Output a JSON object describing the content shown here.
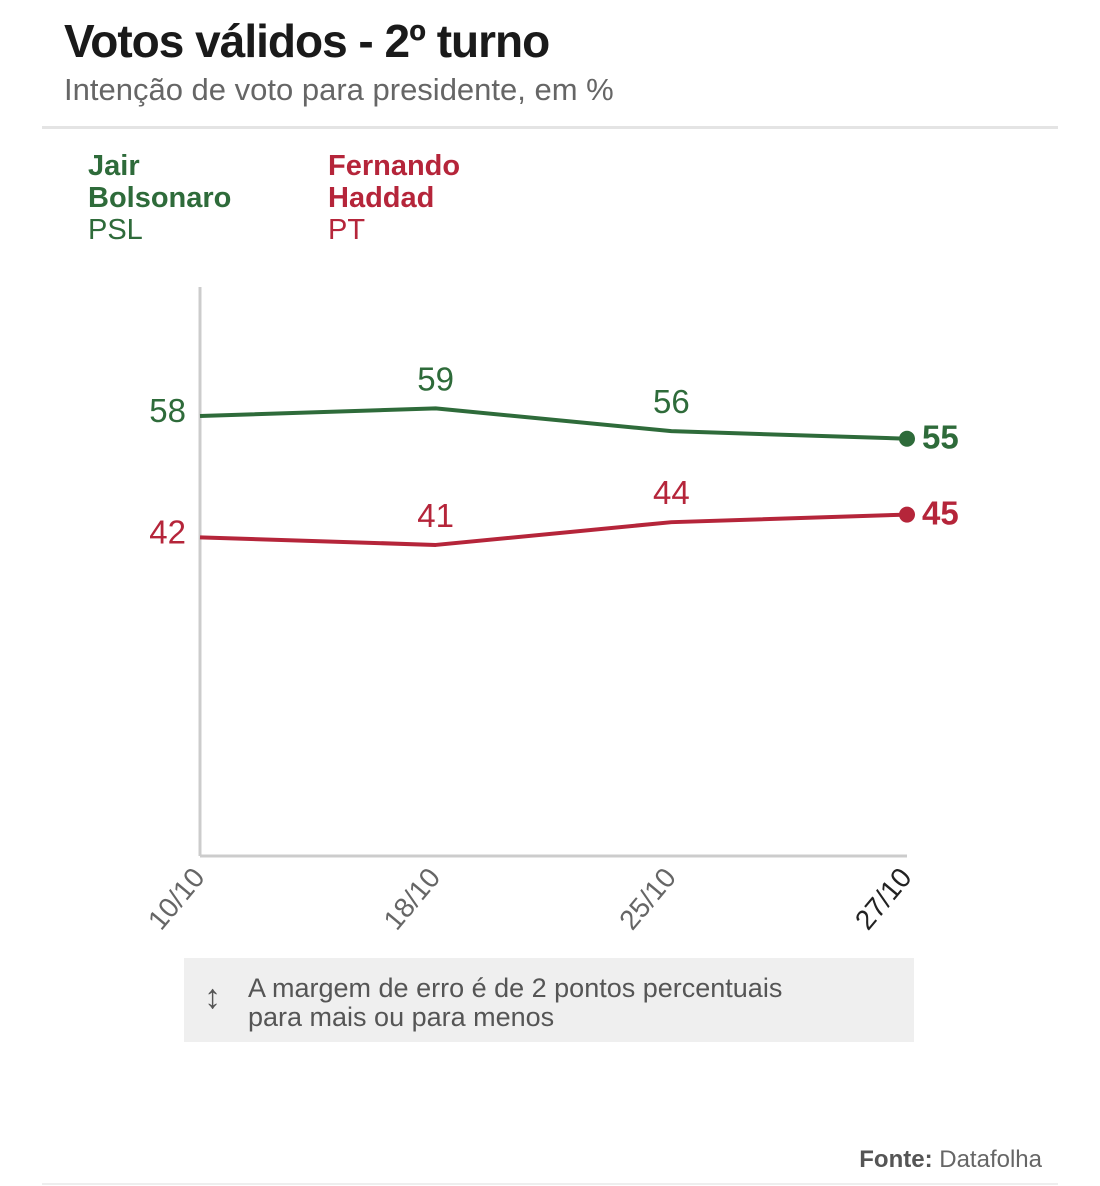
{
  "header": {
    "title": "Votos válidos - 2º turno",
    "subtitle": "Intenção de voto para presidente, em %"
  },
  "legend": [
    {
      "name_line1": "Jair",
      "name_line2": "Bolsonaro",
      "party": "PSL",
      "color": "#2e6b3a"
    },
    {
      "name_line1": "Fernando",
      "name_line2": "Haddad",
      "party": "PT",
      "color": "#b5253a"
    }
  ],
  "chart_data": {
    "type": "line",
    "title": "Votos válidos - 2º turno",
    "subtitle": "Intenção de voto para presidente, em %",
    "categories": [
      "10/10",
      "18/10",
      "25/10",
      "27/10"
    ],
    "series": [
      {
        "name": "Jair Bolsonaro (PSL)",
        "color": "#2e6b3a",
        "values": [
          58,
          59,
          56,
          55
        ]
      },
      {
        "name": "Fernando Haddad (PT)",
        "color": "#b5253a",
        "values": [
          42,
          41,
          44,
          45
        ]
      }
    ],
    "ylim": [
      0,
      75
    ],
    "grid": false,
    "data_labels": true,
    "legend_position": "top-left"
  },
  "note": {
    "icon": "up-down-arrow-icon",
    "line1": "A margem de erro é de 2 pontos percentuais",
    "line2": "para mais ou para menos"
  },
  "source": {
    "label": "Fonte:",
    "value": "Datafolha"
  }
}
